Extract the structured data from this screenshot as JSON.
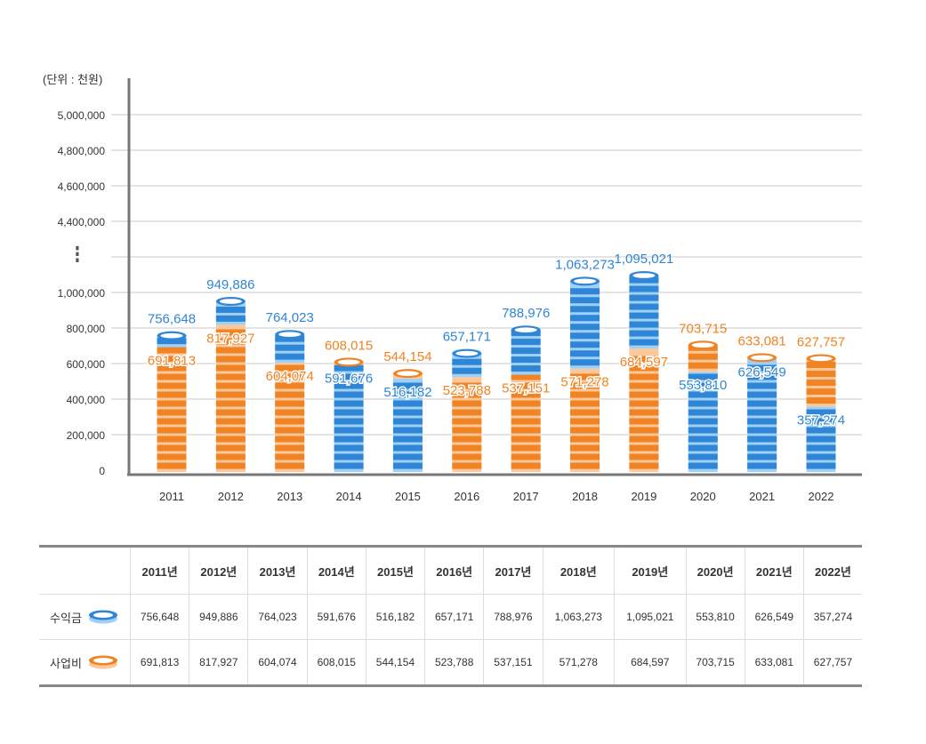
{
  "chart_data": {
    "type": "bar",
    "unit_label": "(단위 : 천원)",
    "categories": [
      "2011",
      "2012",
      "2013",
      "2014",
      "2015",
      "2016",
      "2017",
      "2018",
      "2019",
      "2020",
      "2021",
      "2022"
    ],
    "series": [
      {
        "name": "수익금",
        "color": "#2f86d6",
        "values": [
          756648,
          949886,
          764023,
          591676,
          516182,
          657171,
          788976,
          1063273,
          1095021,
          553810,
          626549,
          357274
        ]
      },
      {
        "name": "사업비",
        "color": "#f08323",
        "values": [
          691813,
          817927,
          604074,
          608015,
          544154,
          523788,
          537151,
          571278,
          684597,
          703715,
          633081,
          627757
        ]
      }
    ],
    "value_labels": {
      "수익금": [
        "756,648",
        "949,886",
        "764,023",
        "591,676",
        "516,182",
        "657,171",
        "788,976",
        "1,063,273",
        "1,095,021",
        "553,810",
        "626,549",
        "357,274"
      ],
      "사업비": [
        "691,813",
        "817,927",
        "604,074",
        "608,015",
        "544,154",
        "523,788",
        "537,151",
        "571,278",
        "684,597",
        "703,715",
        "633,081",
        "627,757"
      ]
    },
    "y_ticks_lower": [
      "0",
      "200,000",
      "400,000",
      "600,000",
      "800,000",
      "1,000,000"
    ],
    "y_ticks_upper": [
      "4,400,000",
      "4,600,000",
      "4,800,000",
      "5,000,000"
    ],
    "ylim": [
      0,
      5000000
    ],
    "axis_break": "⋮",
    "grid": true
  },
  "table": {
    "header": [
      "",
      "2011년",
      "2012년",
      "2013년",
      "2014년",
      "2015년",
      "2016년",
      "2017년",
      "2018년",
      "2019년",
      "2020년",
      "2021년",
      "2022년"
    ],
    "rows": [
      {
        "label": "수익금",
        "icon": "blue-coin-icon",
        "cells": [
          "756,648",
          "949,886",
          "764,023",
          "591,676",
          "516,182",
          "657,171",
          "788,976",
          "1,063,273",
          "1,095,021",
          "553,810",
          "626,549",
          "357,274"
        ]
      },
      {
        "label": "사업비",
        "icon": "orange-coin-icon",
        "cells": [
          "691,813",
          "817,927",
          "604,074",
          "608,015",
          "544,154",
          "523,788",
          "537,151",
          "571,278",
          "684,597",
          "703,715",
          "633,081",
          "627,757"
        ]
      }
    ]
  },
  "colors": {
    "blue": "#2f86d6",
    "blue_light": "#9fd0f5",
    "orange": "#f08323",
    "orange_light": "#fcc79a",
    "grid": "#c8c8c8",
    "axis": "#777777"
  }
}
